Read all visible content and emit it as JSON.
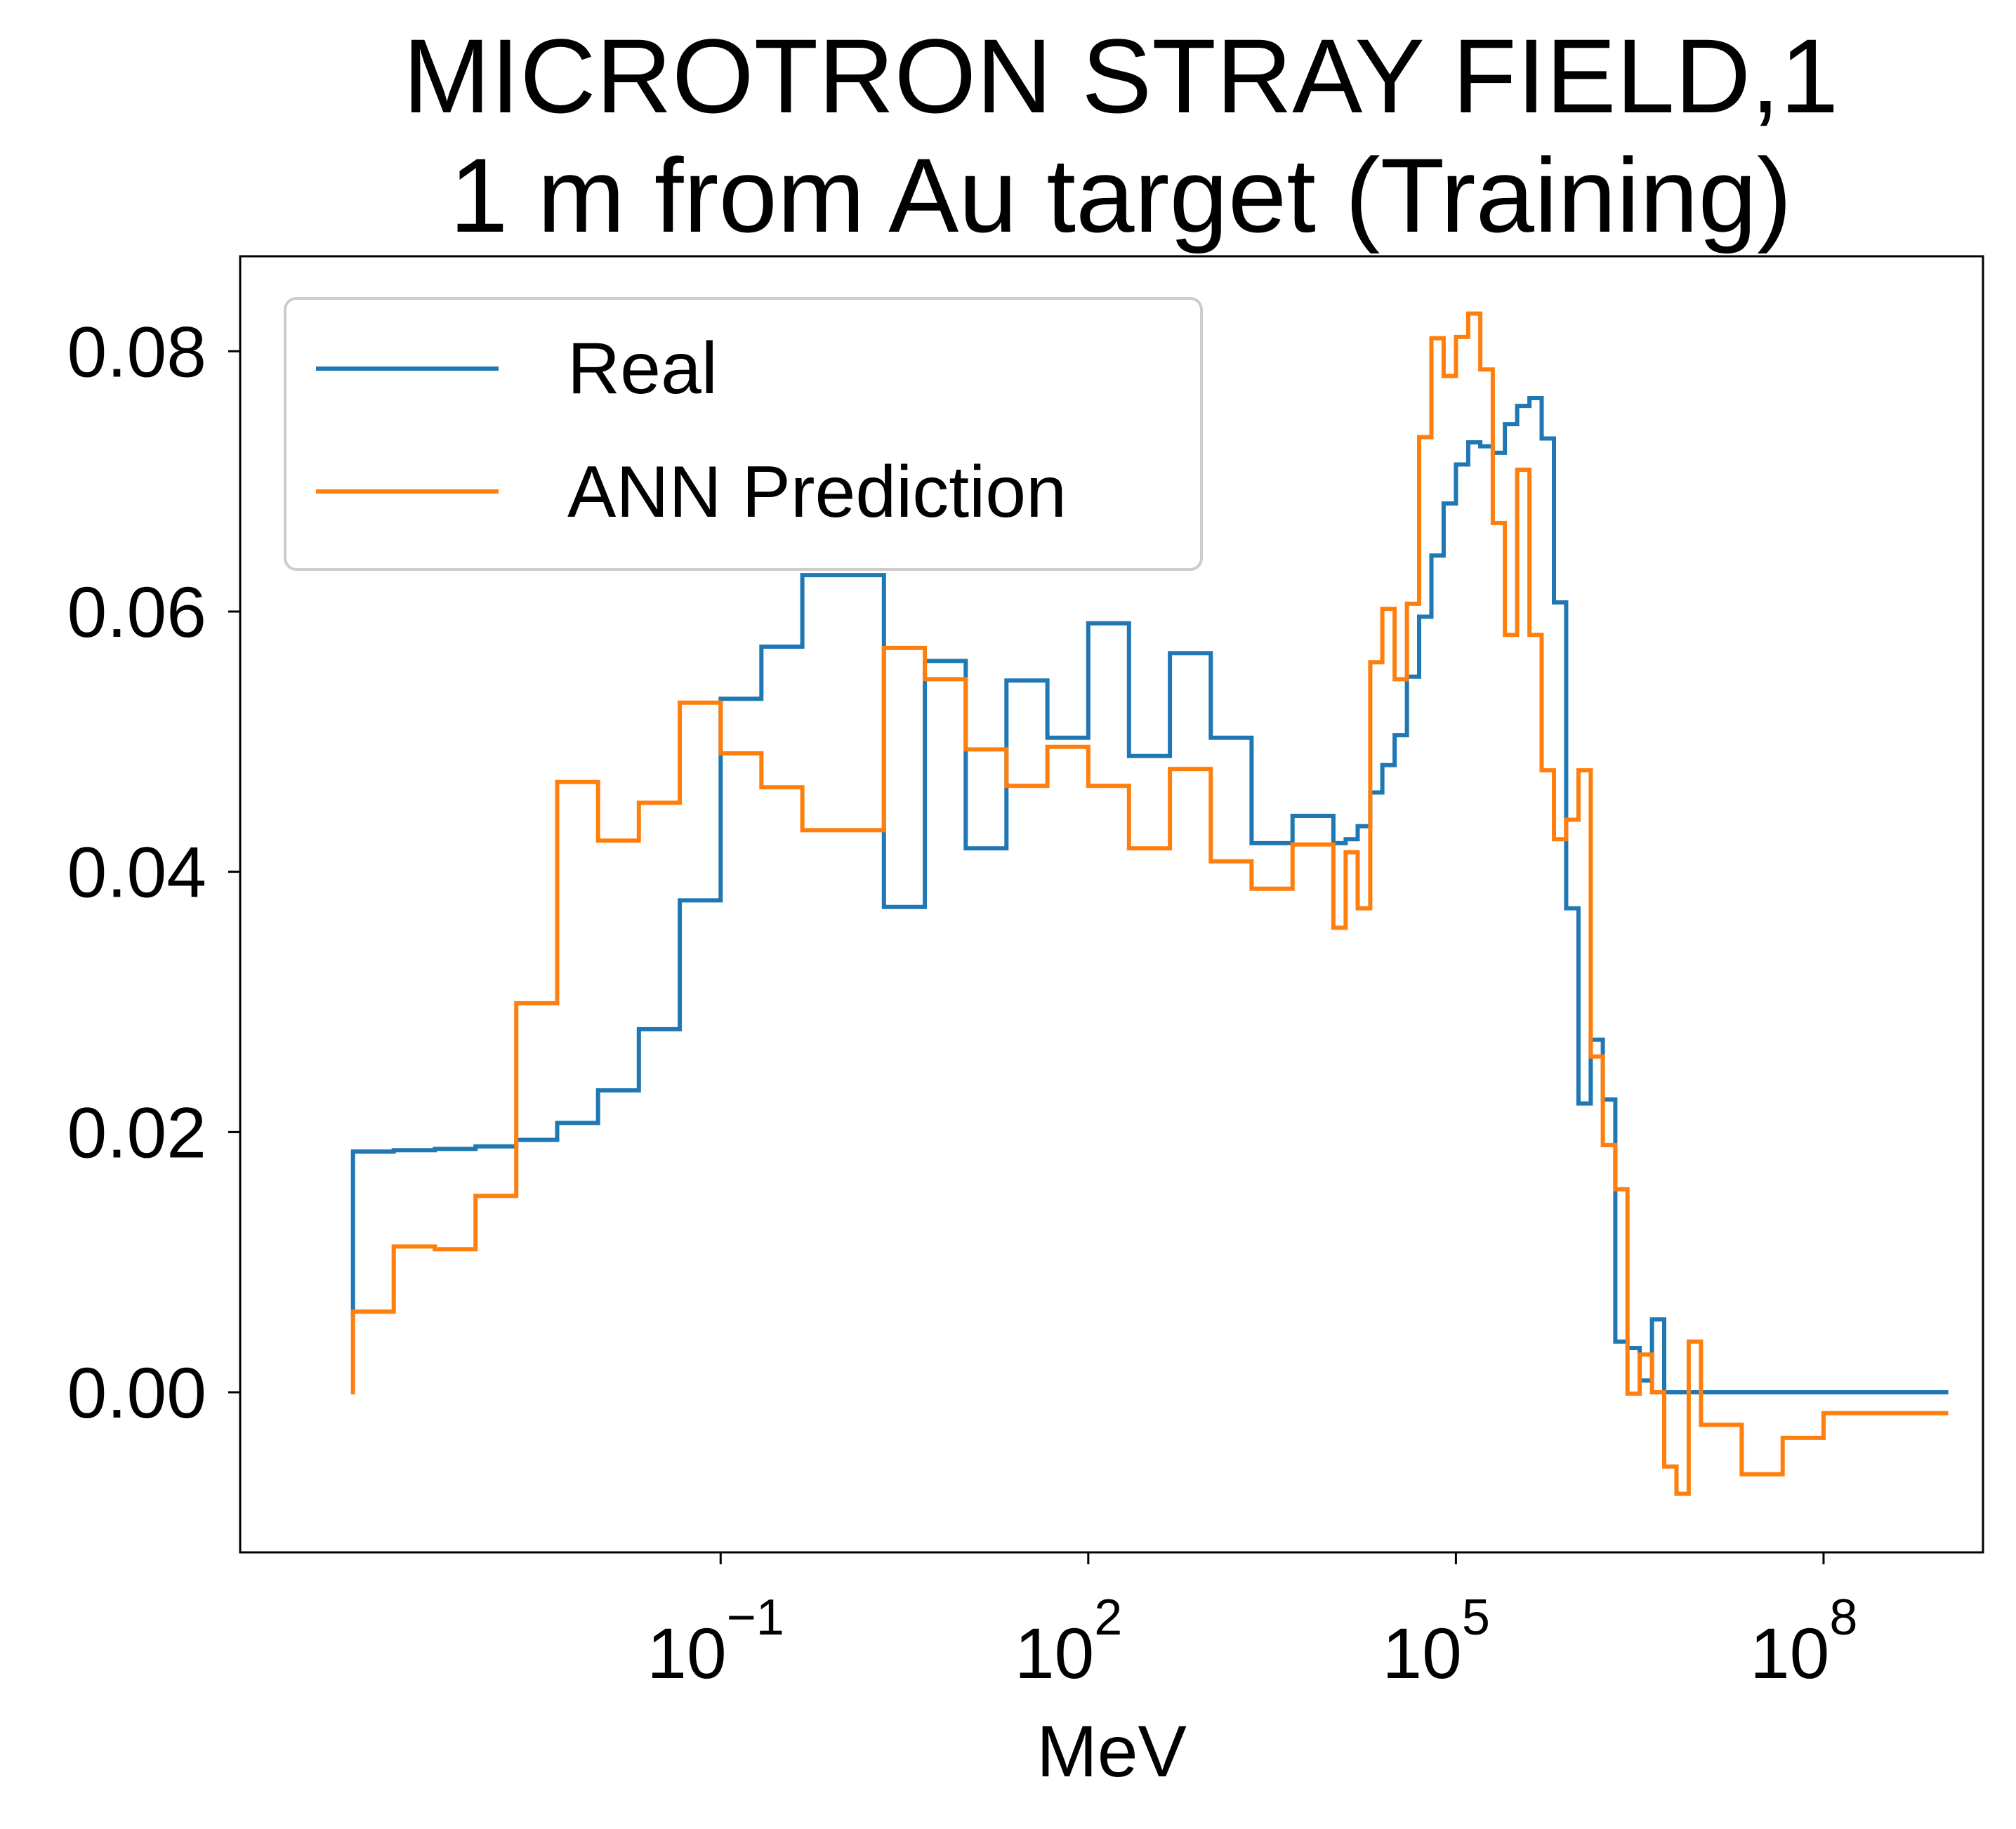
{
  "chart_data": {
    "type": "line",
    "drawstyle": "steps-post",
    "title_lines": [
      "MICROTRON STRAY FIELD,1",
      "1 m from Au target (Training)"
    ],
    "xlabel": "MeV",
    "ylabel": "",
    "xscale": "log",
    "xlim": [
      1.2e-05,
      2000000000
    ],
    "ylim": [
      -0.0123,
      0.0873
    ],
    "x_ticks": [
      {
        "value": 0.1,
        "base": "10",
        "exp": "−1"
      },
      {
        "value": 100,
        "base": "10",
        "exp": "2"
      },
      {
        "value": 100000,
        "base": "10",
        "exp": "5"
      },
      {
        "value": 100000000,
        "base": "10",
        "exp": "8"
      }
    ],
    "y_ticks": [
      {
        "value": 0.0,
        "label": "0.00"
      },
      {
        "value": 0.02,
        "label": "0.02"
      },
      {
        "value": 0.04,
        "label": "0.04"
      },
      {
        "value": 0.06,
        "label": "0.06"
      },
      {
        "value": 0.08,
        "label": "0.08"
      }
    ],
    "grid": false,
    "legend_position": "upper-left",
    "series": [
      {
        "name": "Real",
        "color": "#1f77b4",
        "x": [
          0.0001,
          0.0001,
          0.000215,
          0.000465,
          0.001,
          0.00215,
          0.00464,
          0.01,
          0.0215,
          0.0464,
          0.1,
          0.215,
          0.464,
          1.0,
          2.15,
          4.64,
          10.0,
          21.5,
          46.4,
          100,
          215,
          464,
          1000,
          2150,
          4640,
          10000,
          12600,
          15800,
          20000,
          25100,
          31600,
          39800,
          50100,
          63100,
          79400,
          100000,
          126000,
          158000,
          200000,
          251000,
          316000,
          398000,
          501000,
          631000,
          794000,
          1000000,
          1260000,
          1580000,
          2000000,
          2510000,
          3160000,
          3980000,
          5010000,
          6310000,
          7940000,
          10000000,
          21500000,
          46400000,
          100000000,
          215000000,
          464000000,
          1000000000
        ],
        "y": [
          0.006,
          0.0185,
          0.0186,
          0.0187,
          0.0189,
          0.0194,
          0.0207,
          0.0232,
          0.0279,
          0.0378,
          0.0533,
          0.0573,
          0.0628,
          0.0628,
          0.0373,
          0.0562,
          0.0418,
          0.0547,
          0.0503,
          0.0591,
          0.0489,
          0.0568,
          0.0503,
          0.0422,
          0.0443,
          0.0422,
          0.0425,
          0.0435,
          0.0461,
          0.0482,
          0.0505,
          0.055,
          0.0596,
          0.0643,
          0.0683,
          0.0713,
          0.073,
          0.0727,
          0.0722,
          0.0744,
          0.0758,
          0.0764,
          0.0733,
          0.0607,
          0.0372,
          0.0222,
          0.0271,
          0.0225,
          0.0039,
          0.0034,
          0.0009,
          0.0056,
          0.0,
          0.0,
          0.0,
          0.0,
          0.0,
          0.0,
          0.0,
          0.0,
          0.0,
          0.0
        ]
      },
      {
        "name": "ANN Prediction",
        "color": "#ff7f0e",
        "x": [
          0.0001,
          0.0001,
          0.000215,
          0.000465,
          0.001,
          0.00215,
          0.00464,
          0.01,
          0.0215,
          0.0464,
          0.1,
          0.215,
          0.464,
          1.0,
          2.15,
          4.64,
          10.0,
          21.5,
          46.4,
          100,
          215,
          464,
          1000,
          2150,
          4640,
          10000,
          12600,
          15800,
          20000,
          25100,
          31600,
          39800,
          50100,
          63100,
          79400,
          100000,
          126000,
          158000,
          200000,
          251000,
          316000,
          398000,
          501000,
          631000,
          794000,
          1000000,
          1260000,
          1580000,
          2000000,
          2510000,
          3160000,
          3980000,
          5010000,
          6310000,
          7940000,
          10000000,
          21500000,
          46400000,
          100000000,
          215000000,
          464000000,
          1000000000
        ],
        "y": [
          0.0,
          0.0062,
          0.0112,
          0.011,
          0.0151,
          0.0299,
          0.0469,
          0.0424,
          0.0453,
          0.053,
          0.0491,
          0.0465,
          0.0432,
          0.0432,
          0.0572,
          0.0548,
          0.0494,
          0.0466,
          0.0496,
          0.0466,
          0.0418,
          0.0479,
          0.0408,
          0.0387,
          0.0421,
          0.0357,
          0.0415,
          0.0372,
          0.0561,
          0.0602,
          0.0548,
          0.0606,
          0.0734,
          0.081,
          0.0781,
          0.0811,
          0.0829,
          0.0786,
          0.0668,
          0.0582,
          0.0709,
          0.0582,
          0.0478,
          0.0425,
          0.044,
          0.0478,
          0.0258,
          0.019,
          0.0156,
          -0.0001,
          0.0029,
          0.0,
          -0.0057,
          -0.0078,
          0.0039,
          -0.0025,
          -0.0063,
          -0.0035,
          -0.0016,
          -0.0016,
          -0.0016,
          -0.0016
        ]
      }
    ]
  }
}
